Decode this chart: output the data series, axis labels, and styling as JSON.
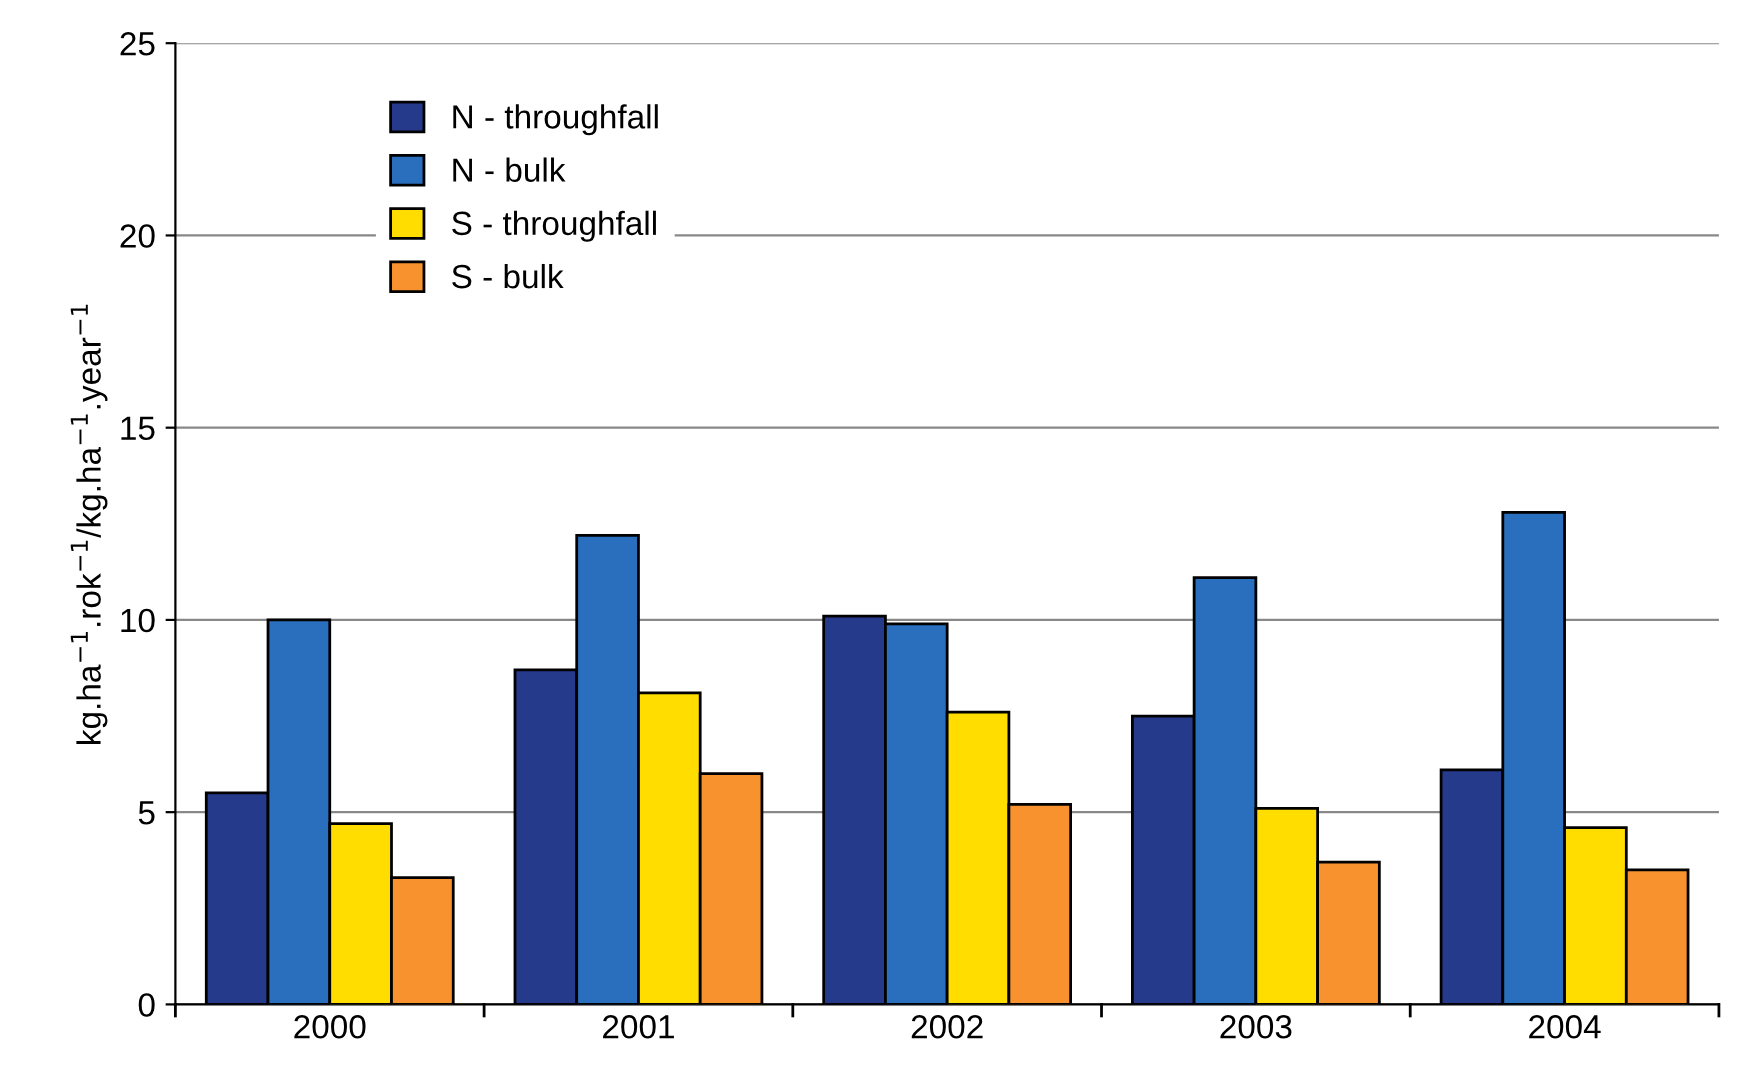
{
  "chart_data": {
    "type": "bar",
    "ylabel": "kg.ha$^{−1}$.rok$^{−1}$/kg.ha$^{−1}$.year$^{−1}$",
    "categories": [
      "2000",
      "2001",
      "2002",
      "2003",
      "2004"
    ],
    "series": [
      {
        "name": "N - throughfall",
        "color": "#263a8c",
        "values": [
          5.5,
          8.7,
          10.1,
          7.5,
          6.1
        ]
      },
      {
        "name": "N - bulk",
        "color": "#2a6fbd",
        "values": [
          10.0,
          12.2,
          9.9,
          11.1,
          12.8
        ]
      },
      {
        "name": "S - throughfall",
        "color": "#ffdd00",
        "values": [
          4.7,
          8.1,
          7.6,
          5.1,
          4.6
        ]
      },
      {
        "name": "S - bulk",
        "color": "#f7922e",
        "values": [
          3.3,
          6.0,
          5.2,
          3.7,
          3.5
        ]
      }
    ],
    "ylim": [
      0,
      25
    ],
    "yticks": [
      0,
      5,
      10,
      15,
      20,
      25
    ],
    "grid": "y",
    "legend": "upper left"
  }
}
